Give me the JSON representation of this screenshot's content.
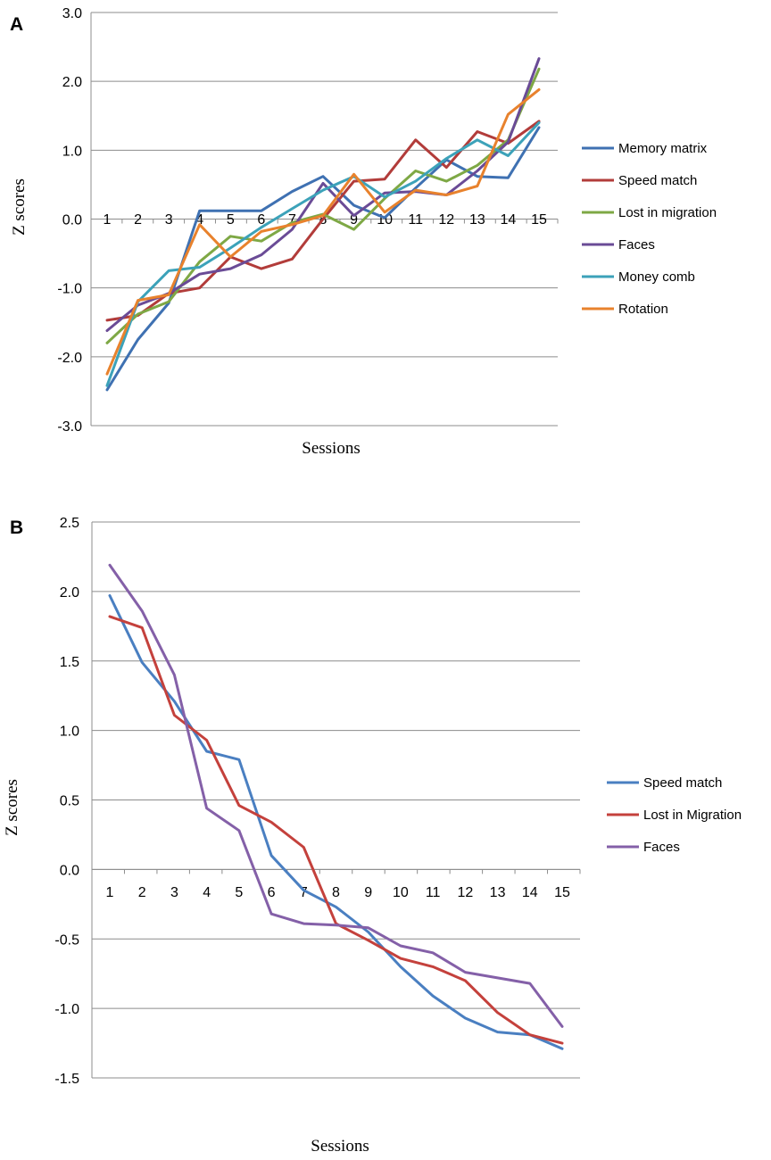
{
  "chart_data": [
    {
      "panel_label": "A",
      "type": "line",
      "title": "",
      "xlabel": "Sessions",
      "ylabel": "Z scores",
      "ylim": [
        -3.0,
        3.0
      ],
      "yticks": [
        "-3.0",
        "-2.0",
        "-1.0",
        "0.0",
        "1.0",
        "2.0",
        "3.0"
      ],
      "ytick_values": [
        -3,
        -2,
        -1,
        0,
        1,
        2,
        3
      ],
      "grid": true,
      "legend_position": "right",
      "categories": [
        "1",
        "2",
        "3",
        "4",
        "5",
        "6",
        "7",
        "8",
        "9",
        "10",
        "11",
        "12",
        "13",
        "14",
        "15"
      ],
      "series": [
        {
          "name": "Memory matrix",
          "color": "#3f71b2",
          "values": [
            -2.48,
            -1.75,
            -1.22,
            0.12,
            0.12,
            0.12,
            0.4,
            0.62,
            0.2,
            0.02,
            0.45,
            0.86,
            0.62,
            0.6,
            1.33
          ]
        },
        {
          "name": "Speed match",
          "color": "#b23c3a",
          "values": [
            -1.47,
            -1.4,
            -1.08,
            -1.0,
            -0.55,
            -0.72,
            -0.58,
            0.0,
            0.55,
            0.58,
            1.15,
            0.75,
            1.27,
            1.1,
            1.42
          ]
        },
        {
          "name": "Lost in migration",
          "color": "#7ea845",
          "values": [
            -1.8,
            -1.38,
            -1.2,
            -0.62,
            -0.25,
            -0.32,
            -0.05,
            0.07,
            -0.15,
            0.3,
            0.7,
            0.55,
            0.78,
            1.15,
            2.18
          ]
        },
        {
          "name": "Faces",
          "color": "#6a4b96",
          "values": [
            -1.62,
            -1.25,
            -1.08,
            -0.8,
            -0.72,
            -0.52,
            -0.15,
            0.52,
            0.05,
            0.38,
            0.4,
            0.35,
            0.7,
            1.12,
            2.33
          ]
        },
        {
          "name": "Money comb",
          "color": "#3ca2b9",
          "values": [
            -2.42,
            -1.2,
            -0.75,
            -0.7,
            -0.42,
            -0.12,
            0.15,
            0.42,
            0.62,
            0.32,
            0.55,
            0.88,
            1.15,
            0.92,
            1.4
          ]
        },
        {
          "name": "Rotation",
          "color": "#e8822d",
          "values": [
            -2.25,
            -1.18,
            -1.1,
            -0.08,
            -0.55,
            -0.18,
            -0.08,
            0.05,
            0.65,
            0.1,
            0.42,
            0.35,
            0.48,
            1.52,
            1.88
          ]
        }
      ]
    },
    {
      "panel_label": "B",
      "type": "line",
      "title": "",
      "xlabel": "Sessions",
      "ylabel": "Z scores",
      "ylim": [
        -1.5,
        2.5
      ],
      "yticks": [
        "-1.5",
        "-1.0",
        "-0.5",
        "0.0",
        "0.5",
        "1.0",
        "1.5",
        "2.0",
        "2.5"
      ],
      "ytick_values": [
        -1.5,
        -1.0,
        -0.5,
        0.0,
        0.5,
        1.0,
        1.5,
        2.0,
        2.5
      ],
      "grid": true,
      "legend_position": "right",
      "categories": [
        "1",
        "2",
        "3",
        "4",
        "5",
        "6",
        "7",
        "8",
        "9",
        "10",
        "11",
        "12",
        "13",
        "14",
        "15"
      ],
      "series": [
        {
          "name": "Speed match",
          "color": "#4a7fc1",
          "values": [
            1.97,
            1.49,
            1.21,
            0.85,
            0.79,
            0.1,
            -0.15,
            -0.27,
            -0.45,
            -0.7,
            -0.91,
            -1.07,
            -1.17,
            -1.19,
            -1.29
          ]
        },
        {
          "name": "Lost in Migration",
          "color": "#c4413c",
          "values": [
            1.82,
            1.74,
            1.11,
            0.93,
            0.46,
            0.34,
            0.16,
            -0.39,
            -0.51,
            -0.64,
            -0.7,
            -0.8,
            -1.03,
            -1.19,
            -1.25
          ]
        },
        {
          "name": "Faces",
          "color": "#8460a8",
          "values": [
            2.19,
            1.86,
            1.4,
            0.44,
            0.28,
            -0.32,
            -0.39,
            -0.4,
            -0.42,
            -0.55,
            -0.6,
            -0.74,
            -0.78,
            -0.82,
            -1.13
          ]
        }
      ]
    }
  ]
}
